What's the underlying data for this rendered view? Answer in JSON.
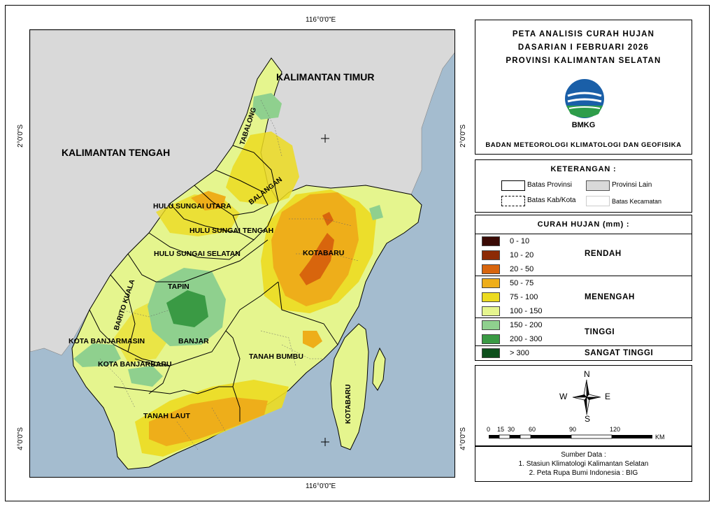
{
  "coords": {
    "top": "116°0'0\"E",
    "bottom": "116°0'0\"E",
    "left_top": "2°0'0\"S",
    "left_bottom": "4°0'0\"S",
    "right_top": "2°0'0\"S",
    "right_bottom": "4°0'0\"S"
  },
  "map_labels": {
    "kaltim": "KALIMANTAN TIMUR",
    "kalteng": "KALIMANTAN TENGAH",
    "tabalong": "TABALONG",
    "balangan": "BALANGAN",
    "hsu": "HULU SUNGAI UTARA",
    "hst": "HULU SUNGAI TENGAH",
    "hss": "HULU SUNGAI SELATAN",
    "kotabaru": "KOTABARU",
    "kotabaru_island": "KOTABARU",
    "tapin": "TAPIN",
    "barito_kuala": "BARITO KUALA",
    "kota_banjarmasin": "KOTA BANJARMASIN",
    "banjar": "BANJAR",
    "kota_banjarbaru": "KOTA BANJARBARU",
    "tanah_bumbu": "TANAH BUMBU",
    "tanah_laut": "TANAH LAUT"
  },
  "title": {
    "line1": "PETA ANALISIS CURAH HUJAN",
    "line2": "DASARIAN I FEBRUARI 2026",
    "line3": "PROVINSI KALIMANTAN SELATAN",
    "logo_text": "BMKG",
    "agency": "BADAN METEOROLOGI KLIMATOLOGI DAN GEOFISIKA"
  },
  "keterangan": {
    "title": "KETERANGAN :",
    "batas_provinsi": "Batas Provinsi",
    "provinsi_lain": "Provinsi Lain",
    "batas_kab": "Batas Kab/Kota",
    "batas_kecamatan": "Batas Kecamatan"
  },
  "legend": {
    "title": "CURAH HUJAN (mm) :",
    "classes": [
      {
        "label": "0 - 10",
        "color": "#3a0a05"
      },
      {
        "label": "10 - 20",
        "color": "#8c2a05"
      },
      {
        "label": "20 - 50",
        "color": "#d8650d"
      },
      {
        "label": "50 - 75",
        "color": "#eeae1a"
      },
      {
        "label": "75 - 100",
        "color": "#ecdb20"
      },
      {
        "label": "100 - 150",
        "color": "#e5f58e"
      },
      {
        "label": "150 - 200",
        "color": "#8fd08e"
      },
      {
        "label": "200 - 300",
        "color": "#3a9a44"
      },
      {
        "label": "> 300",
        "color": "#0d4f1c"
      }
    ],
    "categories": {
      "rendah": "RENDAH",
      "menengah": "MENENGAH",
      "tinggi": "TINGGI",
      "sangat_tinggi": "SANGAT TINGGI"
    }
  },
  "compass": {
    "n": "N",
    "e": "E",
    "s": "S",
    "w": "W"
  },
  "scale": {
    "ticks": [
      "0",
      "15",
      "30",
      "60",
      "90",
      "120"
    ],
    "unit": "KM"
  },
  "source": {
    "title": "Sumber Data :",
    "line1": "1. Stasiun Klimatologi Kalimantan Selatan",
    "line2": "2. Peta Rupa Bumi Indonesia : BIG"
  },
  "colors": {
    "sea": "#a4bccf",
    "other_province": "#d9d9d9"
  }
}
